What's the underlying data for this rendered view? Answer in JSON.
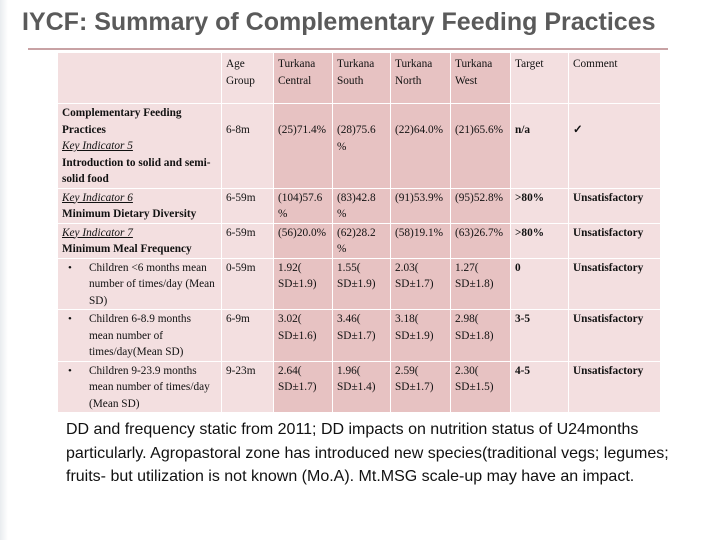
{
  "title": "IYCF: Summary of Complementary Feeding Practices",
  "headers": {
    "age_group": "Age Group",
    "central": "Turkana Central",
    "south": "Turkana South",
    "north": "Turkana North",
    "west": "Turkana West",
    "target": "Target",
    "comment": "Comment"
  },
  "section_heading": "Complementary Feeding Practices",
  "rows": [
    {
      "key": "Key Indicator 5",
      "name": "Introduction to solid and semi-solid food",
      "age": "6-8m",
      "central": "(25)71.4%",
      "south": "(28)75.6 %",
      "north": "(22)64.0%",
      "west": "(21)65.6%",
      "target": "n/a",
      "comment": "✓"
    },
    {
      "key": "Key Indicator 6",
      "name": "Minimum Dietary Diversity",
      "age": "6-59m",
      "central": "(104)57.6 %",
      "south": "(83)42.8 %",
      "north": "(91)53.9%",
      "west": "(95)52.8%",
      "target": ">80%",
      "comment": "Unsatisfactory"
    },
    {
      "key": "Key Indicator 7",
      "name": "Minimum Meal Frequency",
      "age": "6-59m",
      "central": "(56)20.0%",
      "south": "(62)28.2 %",
      "north": "(58)19.1%",
      "west": "(63)26.7%",
      "target": ">80%",
      "comment": "Unsatisfactory"
    },
    {
      "name": "Children <6 months mean number of times/day (Mean SD)",
      "age": "0-59m",
      "central": "1.92( SD±1.9)",
      "south": "1.55( SD±1.9)",
      "north": "2.03( SD±1.7)",
      "west": "1.27( SD±1.8)",
      "target": "0",
      "comment": "Unsatisfactory"
    },
    {
      "name": "Children 6-8.9 months mean number of times/day(Mean SD)",
      "age": "6-9m",
      "central": "3.02( SD±1.6)",
      "south": "3.46( SD±1.7)",
      "north": "3.18( SD±1.9)",
      "west": "2.98( SD±1.8)",
      "target": "3-5",
      "comment": "Unsatisfactory"
    },
    {
      "name": "Children 9-23.9 months mean number of times/day (Mean SD)",
      "age": "9-23m",
      "central": "2.64( SD±1.7)",
      "south": "1.96( SD±1.4)",
      "north": "2.59( SD±1.7)",
      "west": "2.30( SD±1.5)",
      "target": "4-5",
      "comment": "Unsatisfactory"
    }
  ],
  "note": "DD and frequency static from 2011; DD impacts on nutrition status of U24months particularly. Agropastoral zone has introduced new species(traditional vegs; legumes; fruits- but utilization is not known (Mo.A). Mt.MSG scale-up may have an impact.",
  "colors": {
    "title": "#5a5a5a",
    "cell_light": "#f3dfe0",
    "cell_dark": "#e7c2c2",
    "rule": "#c8a2a4"
  }
}
